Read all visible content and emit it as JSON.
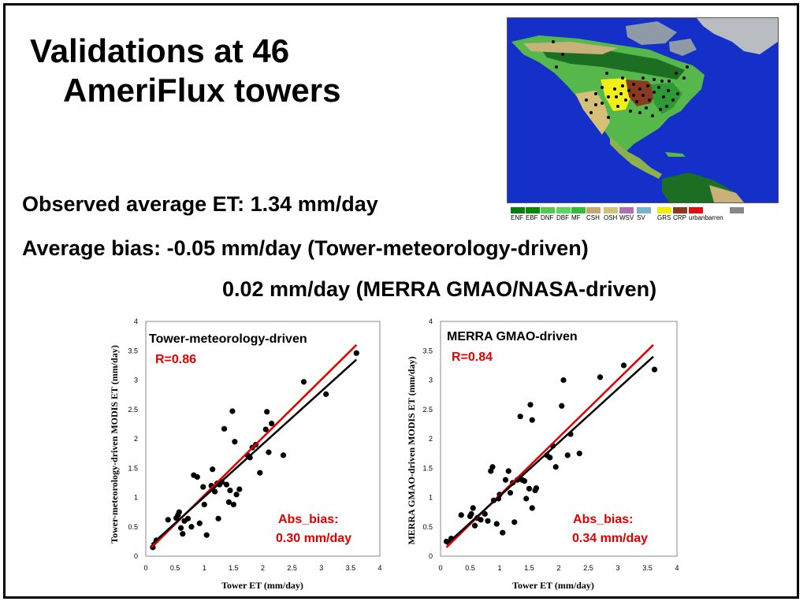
{
  "slide": {
    "title_line1": "Validations at 46",
    "title_line2": "AmeriFlux towers",
    "observed": "Observed average ET: 1.34 mm/day",
    "bias1": "Average bias:  -0.05 mm/day (Tower-meteorology-driven)",
    "bias2": "0.02 mm/day (MERRA GMAO/NASA-driven)"
  },
  "map_legend": [
    {
      "label": "ENF",
      "color": "#0a7a12"
    },
    {
      "label": "EBF",
      "color": "#008a00"
    },
    {
      "label": "DNF",
      "color": "#56c850"
    },
    {
      "label": "DBF",
      "color": "#5ad85a"
    },
    {
      "label": "MF",
      "color": "#2fbf2f"
    },
    {
      "label": "CSH",
      "color": "#c8a870"
    },
    {
      "label": "OSH",
      "color": "#d2c27a"
    },
    {
      "label": "WSV",
      "color": "#b070b0"
    },
    {
      "label": "SV",
      "color": "#7ab0d0"
    },
    {
      "label": "GRS",
      "color": "#f0f000"
    },
    {
      "label": "CRP",
      "color": "#8a3a1e"
    },
    {
      "label": "urbanbarren",
      "color": "#e01010"
    },
    {
      "label": "",
      "color": "#888888"
    }
  ],
  "chart_data": [
    {
      "type": "scatter",
      "title": "Tower-meteorology-driven",
      "r_label": "R=0.86",
      "bias_line1": "Abs_bias:",
      "bias_line2": "0.30 mm/day",
      "xlabel": "Tower ET (mm/day)",
      "ylabel": "Tower-meteorology-driven MODIS ET (mm/day)",
      "xlim": [
        0,
        4
      ],
      "ylim": [
        0,
        4
      ],
      "xticks": [
        "0",
        "0.5",
        "1",
        "1.5",
        "2",
        "2.5",
        "3",
        "3.5",
        "4"
      ],
      "yticks": [
        "0",
        "0.5",
        "1",
        "1.5",
        "2",
        "2.5",
        "3",
        "3.5",
        "4"
      ],
      "fit_lines": [
        {
          "color": "#e00000",
          "x": [
            0.1,
            3.6
          ],
          "y": [
            0.15,
            3.6
          ]
        },
        {
          "color": "#000000",
          "x": [
            0.1,
            3.6
          ],
          "y": [
            0.2,
            3.35
          ]
        }
      ],
      "points": [
        [
          0.12,
          0.15
        ],
        [
          0.18,
          0.27
        ],
        [
          0.38,
          0.62
        ],
        [
          0.52,
          0.65
        ],
        [
          0.55,
          0.7
        ],
        [
          0.57,
          0.75
        ],
        [
          0.6,
          0.48
        ],
        [
          0.63,
          0.38
        ],
        [
          0.72,
          0.64
        ],
        [
          0.78,
          0.5
        ],
        [
          0.82,
          1.38
        ],
        [
          0.88,
          1.35
        ],
        [
          0.92,
          0.56
        ],
        [
          0.98,
          1.18
        ],
        [
          1.0,
          0.88
        ],
        [
          1.04,
          0.36
        ],
        [
          1.12,
          1.2
        ],
        [
          1.14,
          1.48
        ],
        [
          1.18,
          1.1
        ],
        [
          1.22,
          1.24
        ],
        [
          1.24,
          0.64
        ],
        [
          1.3,
          1.26
        ],
        [
          1.34,
          2.17
        ],
        [
          1.38,
          1.22
        ],
        [
          1.42,
          0.92
        ],
        [
          1.44,
          1.12
        ],
        [
          1.48,
          2.47
        ],
        [
          1.5,
          0.88
        ],
        [
          1.52,
          1.95
        ],
        [
          1.55,
          1.05
        ],
        [
          1.6,
          1.14
        ],
        [
          1.78,
          1.68
        ],
        [
          1.82,
          1.85
        ],
        [
          1.88,
          1.9
        ],
        [
          1.95,
          1.42
        ],
        [
          2.05,
          2.16
        ],
        [
          2.07,
          2.46
        ],
        [
          2.1,
          1.77
        ],
        [
          2.15,
          2.26
        ],
        [
          2.35,
          1.72
        ],
        [
          2.7,
          2.97
        ],
        [
          3.08,
          2.76
        ],
        [
          3.6,
          3.46
        ],
        [
          1.26,
          1.22
        ],
        [
          0.66,
          0.6
        ],
        [
          1.74,
          1.72
        ]
      ]
    },
    {
      "type": "scatter",
      "title": "MERRA GMAO-driven",
      "r_label": "R=0.84",
      "bias_line1": "Abs_bias:",
      "bias_line2": "0.34 mm/day",
      "xlabel": "Tower ET (mm/day)",
      "ylabel": "MERRA GMAO-driven MODIS ET (mm/day)",
      "xlim": [
        0,
        4
      ],
      "ylim": [
        0,
        4
      ],
      "xticks": [
        "0",
        "0.5",
        "1",
        "1.5",
        "2",
        "2.5",
        "3",
        "3.5",
        "4"
      ],
      "yticks": [
        "0",
        "0.5",
        "1",
        "1.5",
        "2",
        "2.5",
        "3",
        "3.5",
        "4"
      ],
      "fit_lines": [
        {
          "color": "#e00000",
          "x": [
            0.1,
            3.6
          ],
          "y": [
            0.15,
            3.6
          ]
        },
        {
          "color": "#000000",
          "x": [
            0.1,
            3.6
          ],
          "y": [
            0.2,
            3.4
          ]
        }
      ],
      "points": [
        [
          0.1,
          0.25
        ],
        [
          0.18,
          0.3
        ],
        [
          0.35,
          0.7
        ],
        [
          0.5,
          0.68
        ],
        [
          0.52,
          0.72
        ],
        [
          0.55,
          0.82
        ],
        [
          0.58,
          0.52
        ],
        [
          0.62,
          0.65
        ],
        [
          0.75,
          0.72
        ],
        [
          0.8,
          0.6
        ],
        [
          0.85,
          1.45
        ],
        [
          0.88,
          1.52
        ],
        [
          0.9,
          0.95
        ],
        [
          0.95,
          0.55
        ],
        [
          0.98,
          0.98
        ],
        [
          1.05,
          0.4
        ],
        [
          1.1,
          1.3
        ],
        [
          1.15,
          1.45
        ],
        [
          1.18,
          1.08
        ],
        [
          1.22,
          1.25
        ],
        [
          1.25,
          0.58
        ],
        [
          1.3,
          1.3
        ],
        [
          1.35,
          2.38
        ],
        [
          1.42,
          1.28
        ],
        [
          1.45,
          0.98
        ],
        [
          1.5,
          1.15
        ],
        [
          1.52,
          2.58
        ],
        [
          1.55,
          0.82
        ],
        [
          1.55,
          2.32
        ],
        [
          1.6,
          1.12
        ],
        [
          1.62,
          1.16
        ],
        [
          1.8,
          1.72
        ],
        [
          1.85,
          1.68
        ],
        [
          1.9,
          1.88
        ],
        [
          1.95,
          1.52
        ],
        [
          2.05,
          2.56
        ],
        [
          2.08,
          3.0
        ],
        [
          2.15,
          1.72
        ],
        [
          2.2,
          2.08
        ],
        [
          2.35,
          1.75
        ],
        [
          2.7,
          3.05
        ],
        [
          3.1,
          3.25
        ],
        [
          3.62,
          3.18
        ],
        [
          0.68,
          0.62
        ],
        [
          1.0,
          1.05
        ],
        [
          1.38,
          1.3
        ]
      ]
    }
  ]
}
